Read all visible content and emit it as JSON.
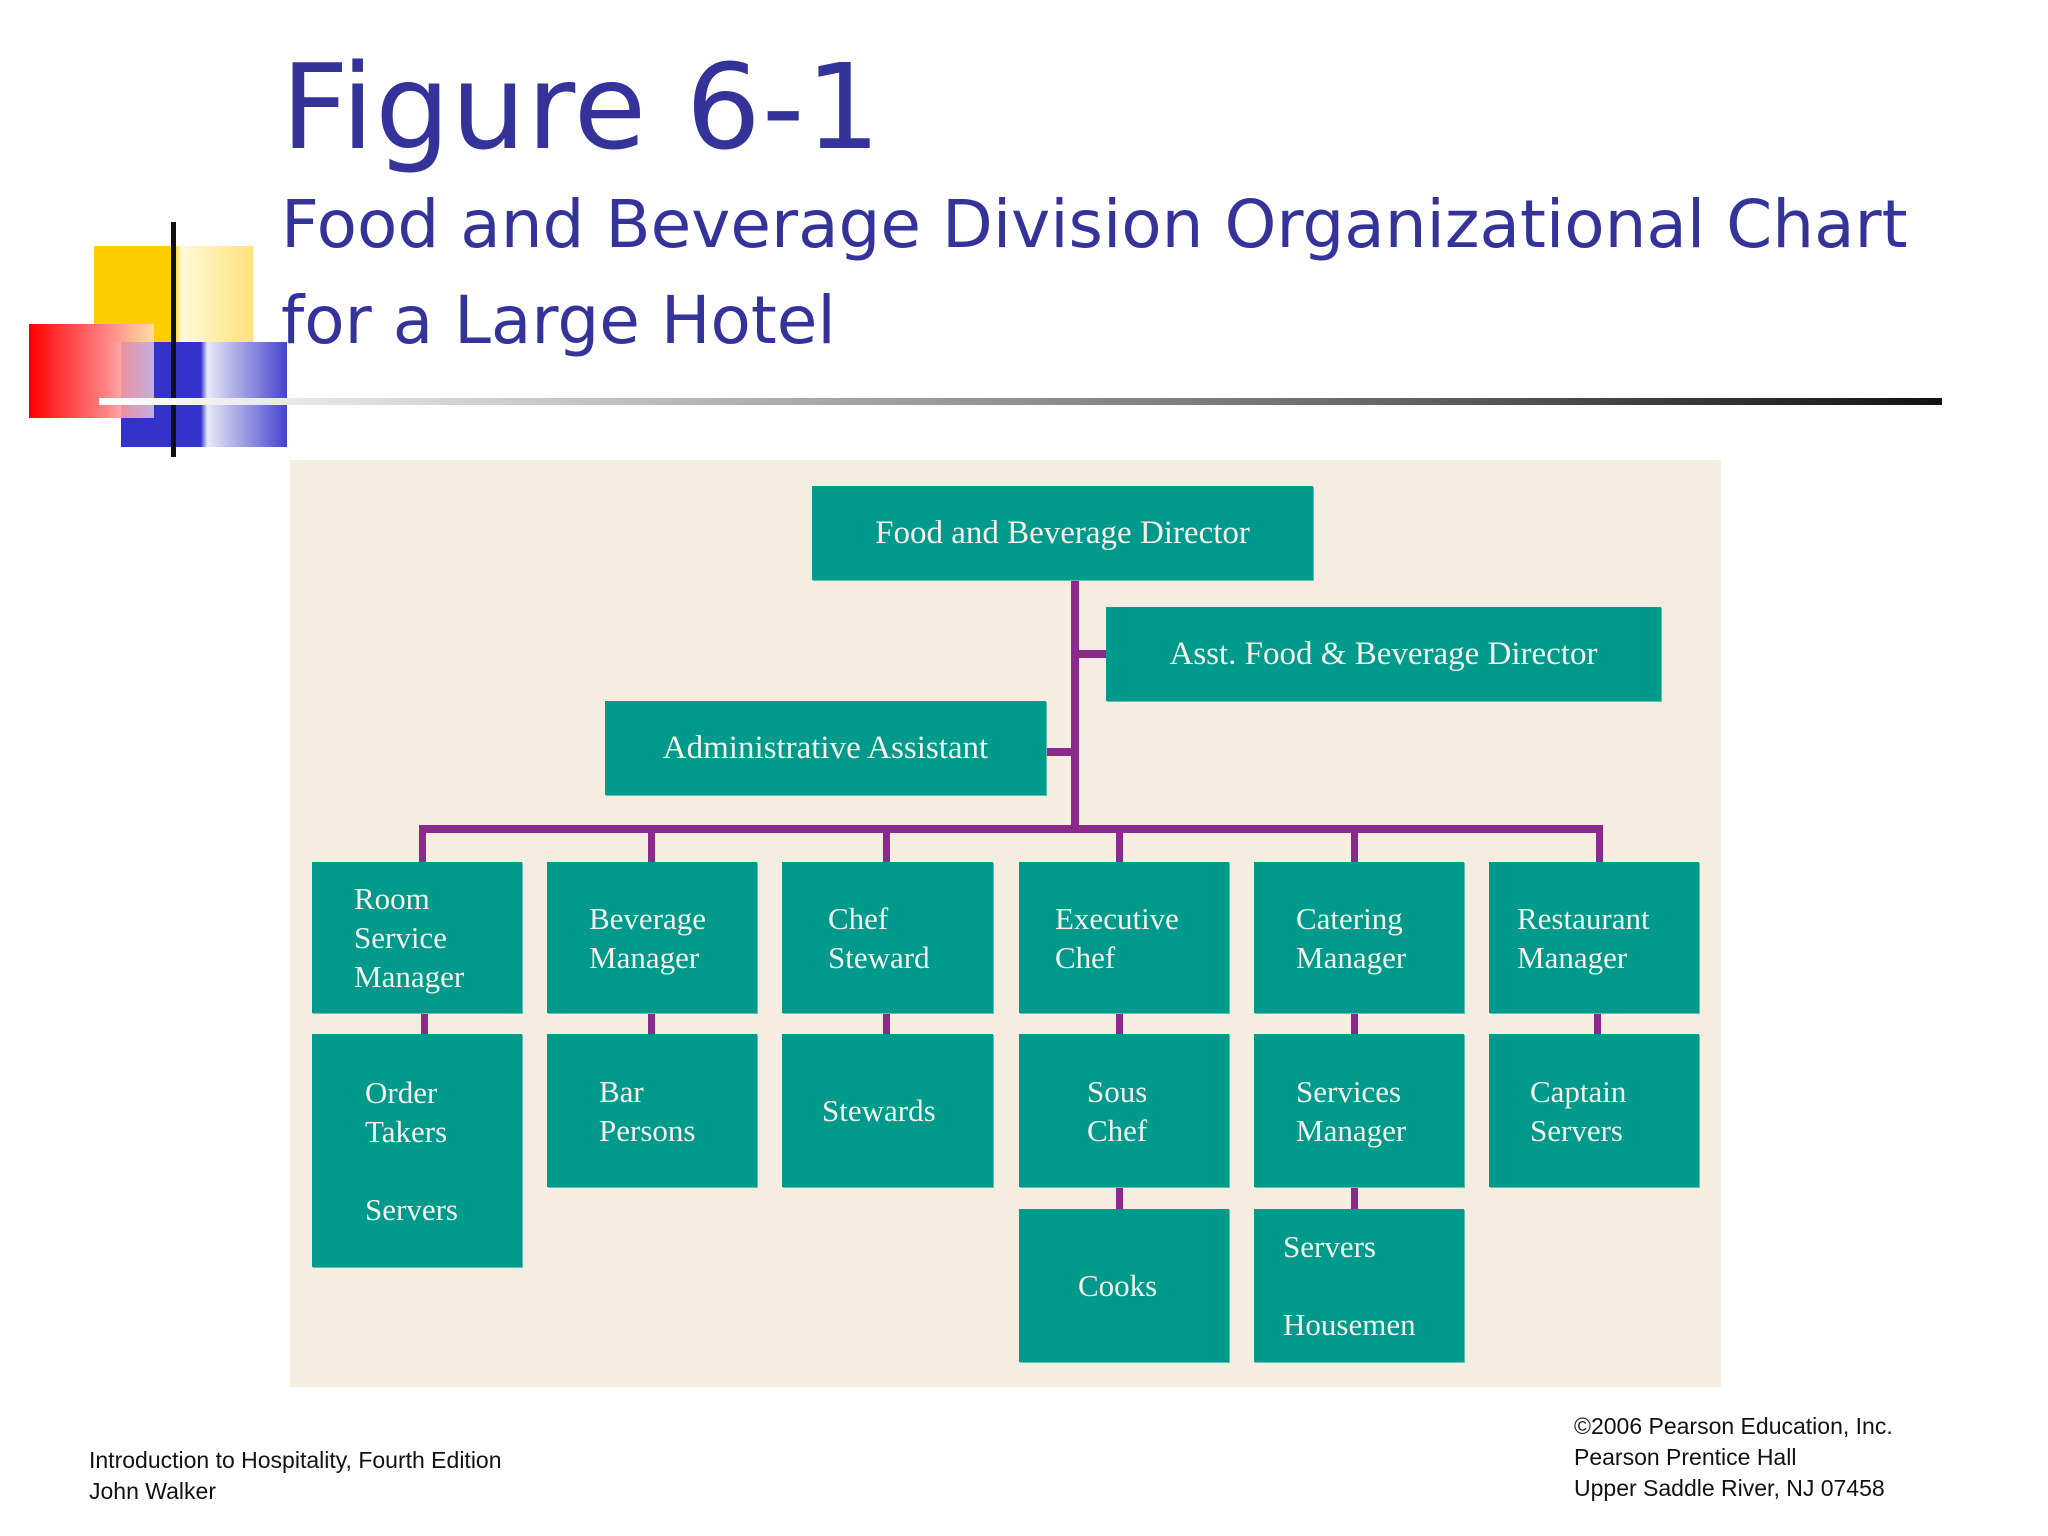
{
  "slide": {
    "title": "Figure 6-1",
    "subtitle_line1": "Food and Beverage Division Organizational Chart",
    "subtitle_line2": "for a Large Hotel"
  },
  "org_chart": {
    "top": "Food and Beverage Director",
    "assistant_director": "Asst. Food & Beverage Director",
    "admin_assistant": "Administrative Assistant",
    "departments": [
      {
        "head": [
          "Room",
          "Service",
          "Manager"
        ],
        "staff": [
          [
            "Order",
            "Takers",
            "",
            "Servers"
          ]
        ]
      },
      {
        "head": [
          "Beverage",
          "Manager"
        ],
        "staff": [
          [
            "Bar",
            "Persons"
          ]
        ]
      },
      {
        "head": [
          "Chef",
          "Steward"
        ],
        "staff": [
          [
            "Stewards"
          ]
        ]
      },
      {
        "head": [
          "Executive",
          "Chef"
        ],
        "staff": [
          [
            "Sous",
            "Chef"
          ],
          [
            "Cooks"
          ]
        ]
      },
      {
        "head": [
          "Catering",
          "Manager"
        ],
        "staff": [
          [
            "Services",
            "Manager"
          ],
          [
            "Servers",
            "",
            "Housemen"
          ]
        ]
      },
      {
        "head": [
          "Restaurant",
          "Manager"
        ],
        "staff": [
          [
            "Captain",
            "Servers"
          ]
        ]
      }
    ],
    "colors": {
      "box": "#009a8c",
      "connector": "#8b2a8b",
      "background": "#f5ede0",
      "title": "#333399"
    }
  },
  "footer": {
    "left_line1": "Introduction to Hospitality, Fourth Edition",
    "left_line2": "John Walker",
    "right_line1": "©2006 Pearson Education, Inc.",
    "right_line2": "Pearson Prentice Hall",
    "right_line3": "Upper Saddle River, NJ 07458"
  }
}
